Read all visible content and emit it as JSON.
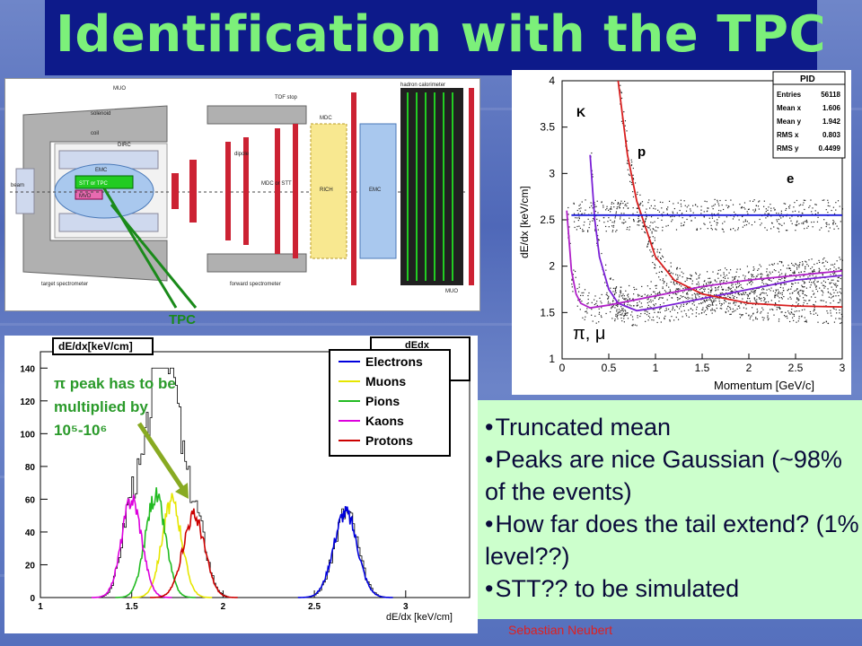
{
  "slide": {
    "title": "Identification with the TPC",
    "author": "Sebastian Neubert"
  },
  "detector": {
    "labels": {
      "muo_top": "MUO",
      "solenoid": "solenoid",
      "coil": "coil",
      "dirc": "DIRC",
      "emc": "EMC",
      "tof_stop": "TOF stop",
      "mdc": "MDC",
      "dipole": "dipole",
      "mdc_stt": "MDC or STT",
      "rich": "RICH",
      "emc_fwd": "EMC",
      "hadron_cal": "hadron calorimeter",
      "muo_fwd": "MUO",
      "target_spectrometer": "target spectrometer",
      "forward_spectrometer": "forward spectrometer",
      "beam": "beam",
      "stt_tpc": "STT or TPC",
      "mvd": "MVD"
    },
    "tpc_callout": "TPC"
  },
  "pid_plot": {
    "stats_box": {
      "title": "PID",
      "rows": [
        {
          "k": "Entries",
          "v": "56118"
        },
        {
          "k": "Mean x",
          "v": "1.606"
        },
        {
          "k": "Mean y",
          "v": "1.942"
        },
        {
          "k": "RMS x",
          "v": "0.803"
        },
        {
          "k": "RMS y",
          "v": "0.4499"
        }
      ]
    },
    "particle_labels": {
      "k": "K",
      "p": "p",
      "e": "e",
      "pi_mu": "π, μ"
    },
    "y_ticks": [
      "1",
      "1.5",
      "2",
      "2.5",
      "3",
      "3.5",
      "4"
    ],
    "x_ticks": [
      "0",
      "0.5",
      "1",
      "1.5",
      "2",
      "2.5",
      "3"
    ]
  },
  "dedx_plot": {
    "legend_title": "dEdx",
    "y_ticks": [
      "0",
      "20",
      "40",
      "60",
      "80",
      "100",
      "120",
      "140"
    ],
    "x_ticks": [
      "1",
      "1.5",
      "2",
      "2.5",
      "3"
    ],
    "peak_note": {
      "line1": "π peak has to be",
      "line2": "multiplied by",
      "line3": "10⁵-10⁶"
    }
  },
  "bullets": [
    "Truncated mean",
    "Peaks are nice Gaussian (~98% of the events)",
    "How far does the tail extend? (1% level??)",
    "STT?? to be simulated"
  ],
  "chart_data": [
    {
      "type": "scatter",
      "title": "PID",
      "xlabel": "Momentum [GeV/c]",
      "ylabel": "dE/dx [keV/cm]",
      "xlim": [
        0,
        3
      ],
      "ylim": [
        1,
        4
      ],
      "series": [
        {
          "name": "K",
          "x": [
            0.3,
            0.35,
            0.4,
            0.5,
            0.6,
            0.8,
            1.0,
            1.5,
            2.0,
            2.5,
            3.0
          ],
          "y": [
            3.2,
            2.5,
            2.1,
            1.75,
            1.6,
            1.52,
            1.55,
            1.65,
            1.75,
            1.85,
            1.9
          ]
        },
        {
          "name": "p",
          "x": [
            0.6,
            0.7,
            0.8,
            1.0,
            1.2,
            1.5,
            2.0,
            2.5,
            3.0
          ],
          "y": [
            4.0,
            3.2,
            2.7,
            2.1,
            1.85,
            1.7,
            1.6,
            1.57,
            1.56
          ]
        },
        {
          "name": "e",
          "x": [
            0.1,
            0.5,
            1.0,
            1.5,
            2.0,
            2.5,
            3.0
          ],
          "y": [
            2.55,
            2.55,
            2.55,
            2.55,
            2.55,
            2.55,
            2.55
          ]
        },
        {
          "name": "π, μ",
          "x": [
            0.05,
            0.1,
            0.15,
            0.2,
            0.3,
            0.5,
            1.0,
            1.5,
            2.0,
            2.5,
            3.0
          ],
          "y": [
            2.6,
            1.95,
            1.7,
            1.6,
            1.55,
            1.58,
            1.68,
            1.78,
            1.85,
            1.9,
            1.95
          ]
        }
      ]
    },
    {
      "type": "line",
      "title": "dE/dx[keV/cm]",
      "xlabel": "dE/dx [keV/cm]",
      "ylabel": "",
      "xlim": [
        1,
        3.35
      ],
      "ylim": [
        0,
        150
      ],
      "legend": "top-right",
      "series": [
        {
          "name": "Electrons",
          "color": "#0000dd",
          "mean": 2.67,
          "sigma": 0.065,
          "peak": 52
        },
        {
          "name": "Muons",
          "color": "#e6e600",
          "mean": 1.72,
          "sigma": 0.055,
          "peak": 58
        },
        {
          "name": "Pions",
          "color": "#22bb22",
          "mean": 1.63,
          "sigma": 0.055,
          "peak": 62
        },
        {
          "name": "Kaons",
          "color": "#dd00dd",
          "mean": 1.5,
          "sigma": 0.055,
          "peak": 60
        },
        {
          "name": "Protons",
          "color": "#cc0000",
          "mean": 1.84,
          "sigma": 0.06,
          "peak": 50
        }
      ],
      "histogram_peak": {
        "x": 1.67,
        "y": 140
      }
    }
  ]
}
